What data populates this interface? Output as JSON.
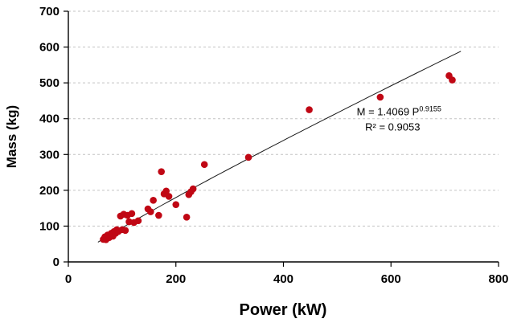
{
  "chart_data": {
    "type": "scatter",
    "title": "",
    "xlabel": "Power (kW)",
    "ylabel": "Mass (kg)",
    "xlim": [
      0,
      800
    ],
    "ylim": [
      0,
      700
    ],
    "xticks": [
      0,
      200,
      400,
      600,
      800
    ],
    "yticks": [
      0,
      100,
      200,
      300,
      400,
      500,
      600,
      700
    ],
    "grid": "horizontal-dashed",
    "legend_position": "none",
    "point_color": "#C00714",
    "gridline_color": "#c3c3c3",
    "axis_color": "#000000",
    "trendline": {
      "type": "power",
      "a": 1.4069,
      "b": 0.9155,
      "x_start": 55,
      "x_end": 730,
      "color": "#1a1a1a"
    },
    "annotation": {
      "equation_base": "M = 1.4069 P",
      "equation_exponent": "0.9155",
      "r_squared": "R² = 0.9053",
      "x": 615,
      "y": 410
    },
    "points": [
      [
        65,
        63
      ],
      [
        68,
        70
      ],
      [
        70,
        62
      ],
      [
        73,
        75
      ],
      [
        76,
        68
      ],
      [
        80,
        80
      ],
      [
        83,
        72
      ],
      [
        85,
        85
      ],
      [
        88,
        80
      ],
      [
        90,
        90
      ],
      [
        93,
        85
      ],
      [
        97,
        128
      ],
      [
        100,
        90
      ],
      [
        103,
        133
      ],
      [
        106,
        88
      ],
      [
        110,
        130
      ],
      [
        113,
        112
      ],
      [
        118,
        135
      ],
      [
        122,
        110
      ],
      [
        130,
        115
      ],
      [
        148,
        148
      ],
      [
        153,
        140
      ],
      [
        158,
        172
      ],
      [
        168,
        130
      ],
      [
        173,
        252
      ],
      [
        178,
        190
      ],
      [
        182,
        198
      ],
      [
        187,
        183
      ],
      [
        200,
        160
      ],
      [
        220,
        125
      ],
      [
        224,
        188
      ],
      [
        228,
        196
      ],
      [
        232,
        204
      ],
      [
        253,
        272
      ],
      [
        335,
        292
      ],
      [
        448,
        425
      ],
      [
        580,
        460
      ],
      [
        708,
        520
      ],
      [
        714,
        508
      ]
    ]
  }
}
